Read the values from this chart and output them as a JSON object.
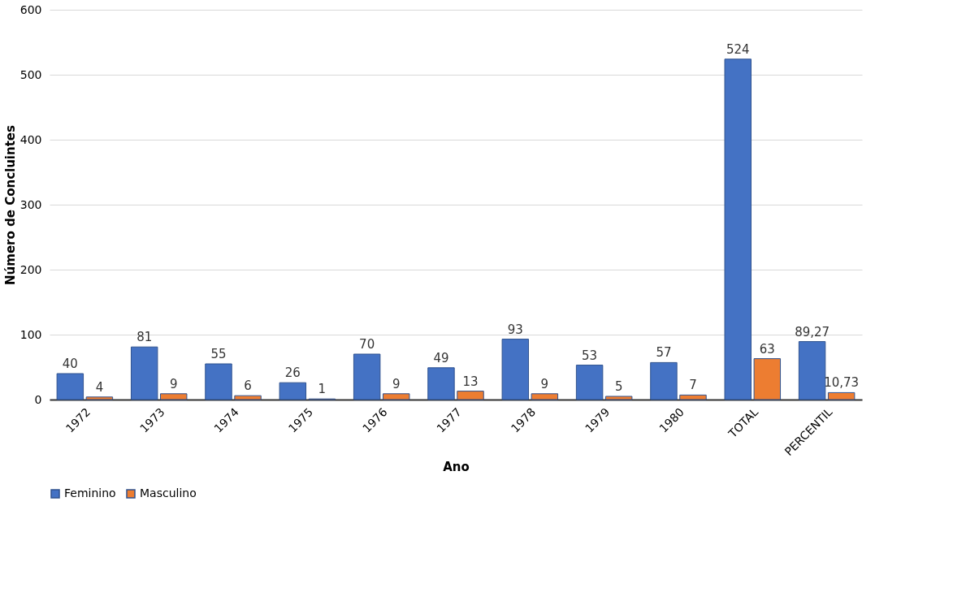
{
  "chart_data": {
    "type": "bar",
    "xlabel": "Ano",
    "ylabel": "Número de Concluintes",
    "categories": [
      "1972",
      "1973",
      "1974",
      "1975",
      "1976",
      "1977",
      "1978",
      "1979",
      "1980",
      "TOTAL",
      "PERCENTIL"
    ],
    "series": [
      {
        "name": "Feminino",
        "color": "#4472c4",
        "values": [
          40,
          81,
          55,
          26,
          70,
          49,
          93,
          53,
          57,
          524,
          89.27
        ],
        "value_labels": [
          "40",
          "81",
          "55",
          "26",
          "70",
          "49",
          "93",
          "53",
          "57",
          "524",
          "89,27"
        ]
      },
      {
        "name": "Masculino",
        "color": "#ed7d31",
        "values": [
          4,
          9,
          6,
          1,
          9,
          13,
          9,
          5,
          7,
          63,
          10.73
        ],
        "value_labels": [
          "4",
          "9",
          "6",
          "1",
          "9",
          "13",
          "9",
          "5",
          "7",
          "63",
          "10,73"
        ]
      }
    ],
    "ylim": [
      0,
      600
    ],
    "yticks": [
      0,
      100,
      200,
      300,
      400,
      500,
      600
    ],
    "grid": "y",
    "legend": "bottom"
  }
}
